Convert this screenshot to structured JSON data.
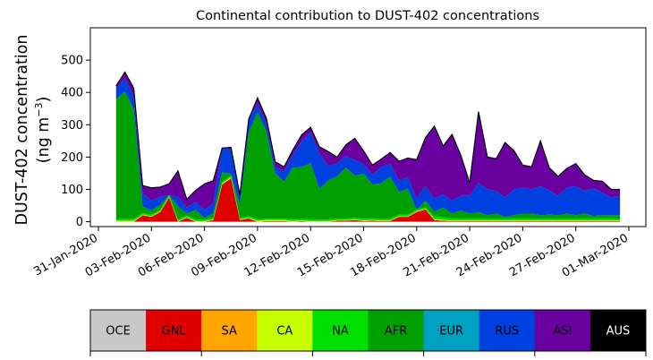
{
  "chart_data": {
    "type": "area",
    "stacked": true,
    "title": "Continental contribution to DUST-402 concentrations",
    "ylabel_line1": "DUST-402 concentration",
    "ylabel_line2_prefix": "(ng m",
    "ylabel_line2_sup": "−3",
    "ylabel_line2_suffix": ")",
    "xlabel": "",
    "ylim": [
      -15,
      600
    ],
    "yticks": [
      0,
      100,
      200,
      300,
      400,
      500
    ],
    "xticks": [
      "31-Jan-2020",
      "03-Feb-2020",
      "06-Feb-2020",
      "09-Feb-2020",
      "12-Feb-2020",
      "15-Feb-2020",
      "18-Feb-2020",
      "21-Feb-2020",
      "24-Feb-2020",
      "27-Feb-2020",
      "01-Mar-2020"
    ],
    "grid": false,
    "legend_position": "bottom colorbar",
    "x": [
      "01-Feb-2020 00:00",
      "01-Feb-2020 12:00",
      "02-Feb-2020 00:00",
      "02-Feb-2020 12:00",
      "03-Feb-2020 00:00",
      "03-Feb-2020 12:00",
      "04-Feb-2020 00:00",
      "04-Feb-2020 12:00",
      "05-Feb-2020 00:00",
      "05-Feb-2020 12:00",
      "06-Feb-2020 00:00",
      "06-Feb-2020 12:00",
      "07-Feb-2020 00:00",
      "07-Feb-2020 12:00",
      "08-Feb-2020 00:00",
      "08-Feb-2020 12:00",
      "09-Feb-2020 00:00",
      "09-Feb-2020 12:00",
      "10-Feb-2020 00:00",
      "10-Feb-2020 12:00",
      "11-Feb-2020 00:00",
      "11-Feb-2020 12:00",
      "12-Feb-2020 00:00",
      "12-Feb-2020 12:00",
      "13-Feb-2020 00:00",
      "13-Feb-2020 12:00",
      "14-Feb-2020 00:00",
      "14-Feb-2020 12:00",
      "15-Feb-2020 00:00",
      "15-Feb-2020 12:00",
      "16-Feb-2020 00:00",
      "16-Feb-2020 12:00",
      "17-Feb-2020 00:00",
      "17-Feb-2020 12:00",
      "18-Feb-2020 00:00",
      "18-Feb-2020 12:00",
      "19-Feb-2020 00:00",
      "19-Feb-2020 12:00",
      "20-Feb-2020 00:00",
      "20-Feb-2020 12:00",
      "21-Feb-2020 00:00",
      "21-Feb-2020 12:00",
      "22-Feb-2020 00:00",
      "22-Feb-2020 12:00",
      "23-Feb-2020 00:00",
      "23-Feb-2020 12:00",
      "24-Feb-2020 00:00",
      "24-Feb-2020 12:00",
      "25-Feb-2020 00:00",
      "25-Feb-2020 12:00",
      "26-Feb-2020 00:00",
      "26-Feb-2020 12:00",
      "27-Feb-2020 00:00",
      "27-Feb-2020 12:00",
      "28-Feb-2020 00:00",
      "28-Feb-2020 12:00",
      "29-Feb-2020 00:00",
      "29-Feb-2020 12:00"
    ],
    "series": [
      {
        "name": "OCE",
        "color": "#c8c8c8",
        "values": [
          0,
          0,
          0,
          0,
          0,
          0,
          0,
          0,
          0,
          0,
          0,
          0,
          0,
          0,
          0,
          0,
          0,
          0,
          0,
          0,
          0,
          0,
          0,
          0,
          0,
          0,
          0,
          0,
          0,
          0,
          0,
          0,
          0,
          0,
          0,
          0,
          0,
          0,
          0,
          0,
          0,
          0,
          0,
          0,
          0,
          0,
          0,
          0,
          0,
          0,
          0,
          0,
          0,
          0,
          0,
          0,
          0,
          0
        ]
      },
      {
        "name": "GNL",
        "color": "#e00000",
        "values": [
          0,
          0,
          0,
          20,
          15,
          30,
          75,
          0,
          12,
          0,
          0,
          5,
          115,
          135,
          5,
          10,
          0,
          2,
          2,
          2,
          0,
          2,
          0,
          0,
          0,
          3,
          3,
          5,
          2,
          3,
          2,
          2,
          15,
          15,
          30,
          38,
          5,
          3,
          2,
          2,
          2,
          2,
          2,
          2,
          2,
          2,
          2,
          2,
          2,
          2,
          2,
          2,
          2,
          2,
          2,
          2,
          2,
          2
        ]
      },
      {
        "name": "SA",
        "color": "#ffa500",
        "values": [
          0,
          0,
          0,
          0,
          0,
          0,
          0,
          0,
          0,
          0,
          0,
          0,
          0,
          0,
          0,
          0,
          0,
          0,
          0,
          0,
          0,
          0,
          0,
          0,
          0,
          0,
          0,
          0,
          0,
          0,
          0,
          0,
          0,
          0,
          0,
          0,
          0,
          0,
          0,
          0,
          0,
          0,
          0,
          0,
          0,
          0,
          0,
          0,
          0,
          0,
          0,
          0,
          0,
          0,
          0,
          0,
          0,
          0
        ]
      },
      {
        "name": "CA",
        "color": "#c8ff00",
        "values": [
          3,
          3,
          3,
          2,
          2,
          2,
          2,
          2,
          2,
          2,
          2,
          2,
          3,
          3,
          2,
          2,
          3,
          3,
          3,
          3,
          2,
          2,
          2,
          2,
          2,
          2,
          2,
          2,
          2,
          2,
          2,
          2,
          2,
          2,
          2,
          2,
          3,
          3,
          2,
          2,
          2,
          2,
          2,
          2,
          2,
          2,
          2,
          2,
          2,
          2,
          2,
          2,
          2,
          2,
          2,
          2,
          2,
          2
        ]
      },
      {
        "name": "NA",
        "color": "#00e000",
        "values": [
          5,
          5,
          5,
          5,
          5,
          5,
          5,
          5,
          5,
          5,
          5,
          5,
          5,
          5,
          5,
          5,
          5,
          5,
          5,
          5,
          5,
          5,
          5,
          5,
          5,
          5,
          5,
          5,
          5,
          5,
          5,
          5,
          5,
          5,
          5,
          5,
          8,
          8,
          6,
          6,
          6,
          6,
          6,
          6,
          6,
          6,
          6,
          6,
          6,
          6,
          6,
          6,
          6,
          6,
          6,
          6,
          6,
          6
        ]
      },
      {
        "name": "AFR",
        "color": "#00a000",
        "values": [
          370,
          395,
          340,
          20,
          13,
          15,
          0,
          40,
          5,
          30,
          5,
          15,
          30,
          5,
          40,
          260,
          330,
          270,
          140,
          115,
          160,
          160,
          175,
          95,
          120,
          130,
          158,
          130,
          140,
          105,
          110,
          130,
          70,
          80,
          0,
          20,
          15,
          30,
          15,
          25,
          15,
          20,
          10,
          15,
          5,
          10,
          15,
          15,
          10,
          12,
          10,
          15,
          10,
          15,
          8,
          10,
          10,
          10
        ]
      },
      {
        "name": "EUR",
        "color": "#00a0c0",
        "values": [
          0,
          0,
          0,
          0,
          0,
          0,
          0,
          0,
          0,
          0,
          0,
          0,
          0,
          0,
          0,
          0,
          0,
          0,
          0,
          0,
          0,
          0,
          0,
          0,
          0,
          0,
          0,
          0,
          0,
          0,
          0,
          0,
          0,
          0,
          0,
          0,
          0,
          0,
          0,
          0,
          0,
          0,
          0,
          0,
          0,
          0,
          0,
          0,
          0,
          0,
          0,
          0,
          0,
          0,
          0,
          0,
          0,
          0
        ]
      },
      {
        "name": "RUS",
        "color": "#0040e0",
        "values": [
          35,
          40,
          40,
          40,
          30,
          25,
          0,
          30,
          20,
          25,
          25,
          30,
          75,
          75,
          30,
          40,
          25,
          25,
          20,
          30,
          40,
          80,
          95,
          110,
          45,
          40,
          35,
          48,
          30,
          30,
          50,
          40,
          35,
          35,
          35,
          45,
          40,
          40,
          40,
          45,
          55,
          90,
          80,
          70,
          60,
          80,
          80,
          75,
          90,
          75,
          60,
          80,
          90,
          70,
          85,
          70,
          55,
          60
        ]
      },
      {
        "name": "ASI",
        "color": "#6a00a0",
        "values": [
          7,
          20,
          25,
          25,
          40,
          30,
          35,
          80,
          25,
          35,
          80,
          70,
          0,
          7,
          0,
          0,
          20,
          15,
          15,
          15,
          15,
          20,
          15,
          20,
          45,
          20,
          35,
          68,
          40,
          30,
          25,
          35,
          60,
          60,
          120,
          150,
          225,
          150,
          205,
          125,
          40,
          220,
          100,
          100,
          170,
          120,
          70,
          70,
          140,
          70,
          60,
          60,
          70,
          50,
          25,
          35,
          25,
          20
        ]
      },
      {
        "name": "AUS",
        "color": "#000000",
        "values": [
          0,
          0,
          0,
          0,
          0,
          0,
          0,
          0,
          0,
          0,
          0,
          0,
          0,
          0,
          0,
          0,
          0,
          0,
          0,
          0,
          0,
          0,
          0,
          0,
          0,
          0,
          0,
          0,
          0,
          0,
          0,
          0,
          0,
          0,
          0,
          0,
          0,
          0,
          0,
          0,
          0,
          0,
          0,
          0,
          0,
          0,
          0,
          0,
          0,
          0,
          0,
          0,
          0,
          0,
          0,
          0,
          0,
          0
        ]
      }
    ],
    "total_line_color": "#000000"
  }
}
